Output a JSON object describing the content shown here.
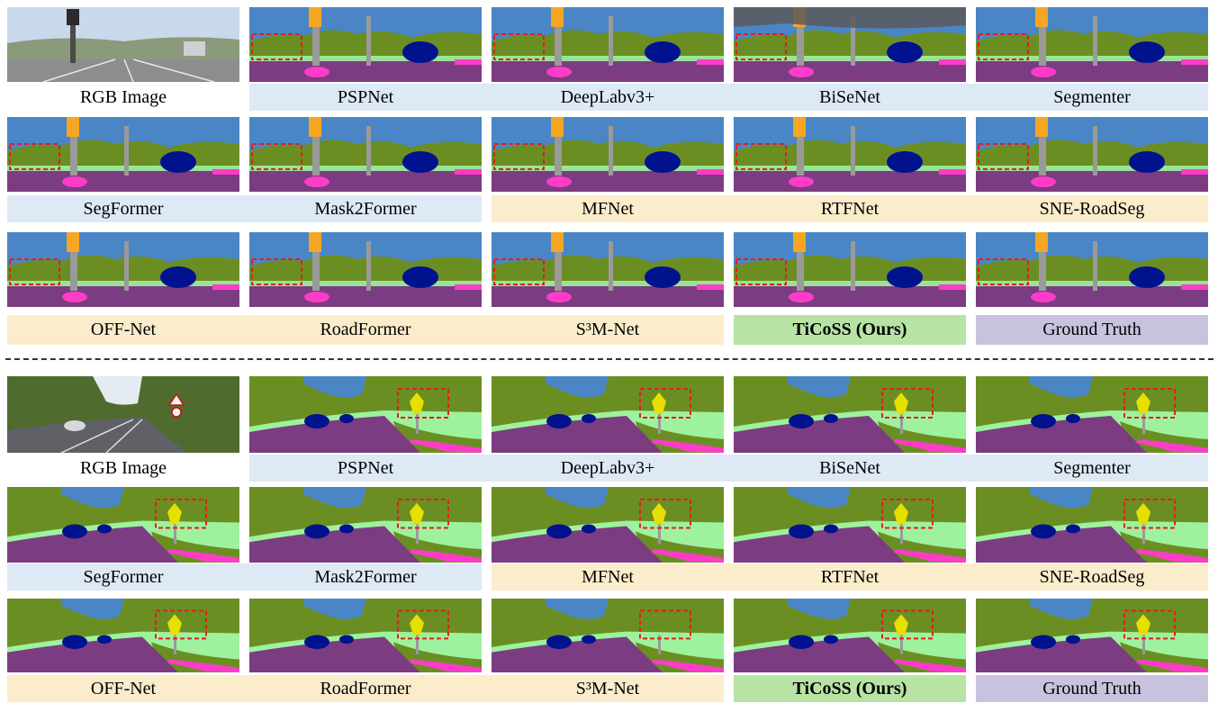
{
  "panels": [
    {
      "rows": [
        [
          "RGB Image",
          "PSPNet",
          "DeepLabv3+",
          "BiSeNet",
          "Segmenter"
        ],
        [
          "SegFormer",
          "Mask2Former",
          "MFNet",
          "RTFNet",
          "SNE-RoadSeg"
        ],
        [
          "OFF-Net",
          "RoadFormer",
          "S³M-Net",
          "TiCoSS (Ours)",
          "Ground Truth"
        ]
      ]
    },
    {
      "rows": [
        [
          "RGB Image",
          "PSPNet",
          "DeepLabv3+",
          "BiSeNet",
          "Segmenter"
        ],
        [
          "SegFormer",
          "Mask2Former",
          "MFNet",
          "RTFNet",
          "SNE-RoadSeg"
        ],
        [
          "OFF-Net",
          "RoadFormer",
          "S³M-Net",
          "TiCoSS (Ours)",
          "Ground Truth"
        ]
      ]
    }
  ],
  "label_colors": {
    "single_modal": "#dde9f5",
    "multi_modal": "#fbeccb",
    "ours": "#b7e4a5",
    "ground_truth": "#c8c2de"
  },
  "class_colors": {
    "sky": "#4a86c5",
    "vegetation": "#6b8e23",
    "road": "#7b3c82",
    "sidewalk": "#ff3cc8",
    "terrain": "#9ef29e",
    "car": "#00128e",
    "pole": "#9a9a9a",
    "traffic_sign": "#e5e000",
    "traffic_light": "#f5a623",
    "building": "#5a5a5a"
  }
}
